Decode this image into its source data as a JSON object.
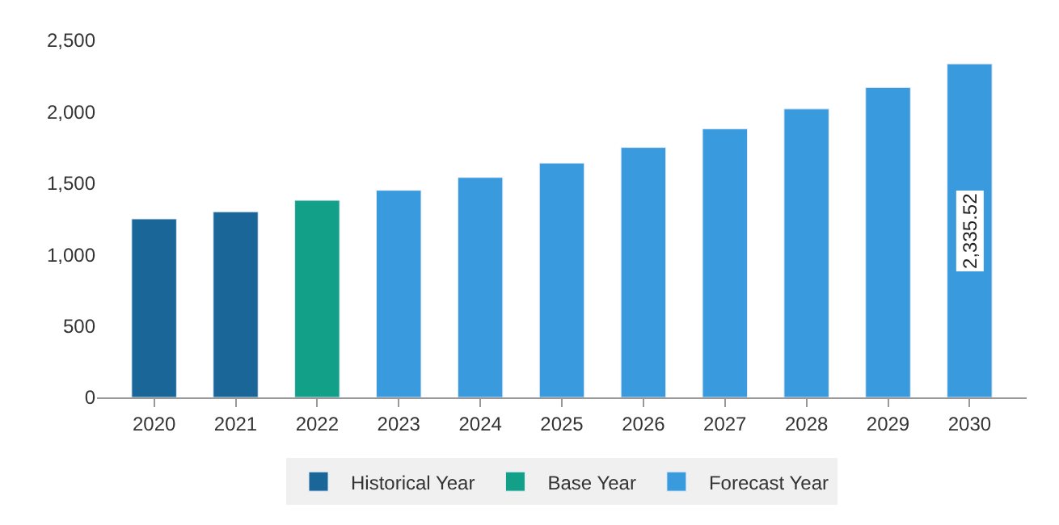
{
  "chart_data": {
    "type": "bar",
    "categories": [
      "2020",
      "2021",
      "2022",
      "2023",
      "2024",
      "2025",
      "2026",
      "2027",
      "2028",
      "2029",
      "2030"
    ],
    "series": [
      {
        "name": "Historical Year",
        "color": "#1a6699",
        "values": [
          1250,
          1300,
          null,
          null,
          null,
          null,
          null,
          null,
          null,
          null,
          null
        ]
      },
      {
        "name": "Base Year",
        "color": "#13a088",
        "values": [
          null,
          null,
          1380,
          null,
          null,
          null,
          null,
          null,
          null,
          null,
          null
        ]
      },
      {
        "name": "Forecast Year",
        "color": "#3a9ade",
        "values": [
          null,
          null,
          null,
          1450,
          1540,
          1640,
          1750,
          1880,
          2020,
          2170,
          2335.52
        ],
        "value_labels": [
          null,
          null,
          null,
          null,
          null,
          null,
          null,
          null,
          null,
          null,
          "2,335.52"
        ]
      }
    ],
    "ylim": [
      0,
      2500
    ],
    "yticks": [
      0,
      {
        "value": 500,
        "label": "500"
      },
      {
        "value": 1000,
        "label": "1,000"
      },
      {
        "value": 1500,
        "label": "1,500"
      },
      {
        "value": 2000,
        "label": "2,000"
      },
      {
        "value": 2500,
        "label": "2,500"
      }
    ],
    "legend": "bottom"
  }
}
